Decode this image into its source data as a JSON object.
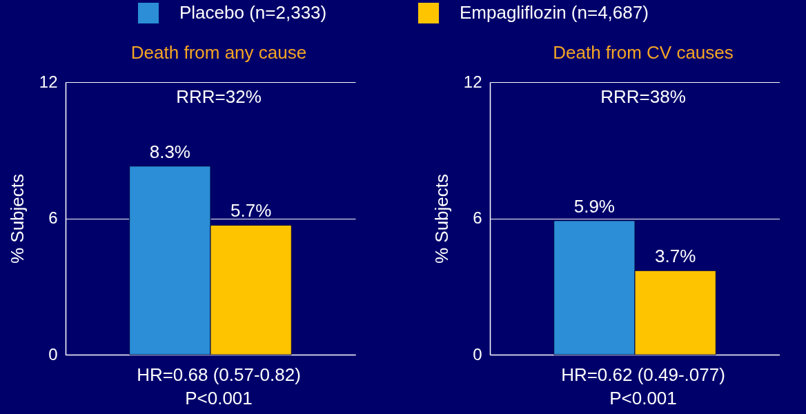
{
  "chart_data": [
    {
      "type": "bar",
      "title": "Death from any cause",
      "ylabel": "% Subjects",
      "categories": [
        null
      ],
      "ylim": [
        0,
        12
      ],
      "yticks": [
        0,
        6,
        12
      ],
      "grid": "y",
      "legend": "top",
      "annotations": [
        "RRR=32%",
        "HR=0.68 (0.57-0.82)",
        "P<0.001"
      ],
      "series": [
        {
          "name": "Placebo (n=2,333)",
          "color": "#2b8ed6",
          "values": [
            8.3
          ],
          "value_labels": [
            "8.3%"
          ]
        },
        {
          "name": "Empagliflozin (n=4,687)",
          "color": "#ffc400",
          "values": [
            5.7
          ],
          "value_labels": [
            "5.7%"
          ]
        }
      ]
    },
    {
      "type": "bar",
      "title": "Death from CV causes",
      "ylabel": "% Subjects",
      "categories": [
        null
      ],
      "ylim": [
        0,
        12
      ],
      "yticks": [
        0,
        6,
        12
      ],
      "grid": "y",
      "annotations": [
        "RRR=38%",
        "HR=0.62 (0.49-.077)",
        "P<0.001"
      ],
      "series": [
        {
          "color": "#2b8ed6",
          "values": [
            5.9
          ],
          "value_labels": [
            "5.9%"
          ]
        },
        {
          "color": "#ffc400",
          "values": [
            3.7
          ],
          "value_labels": [
            "3.7%"
          ]
        }
      ]
    }
  ]
}
